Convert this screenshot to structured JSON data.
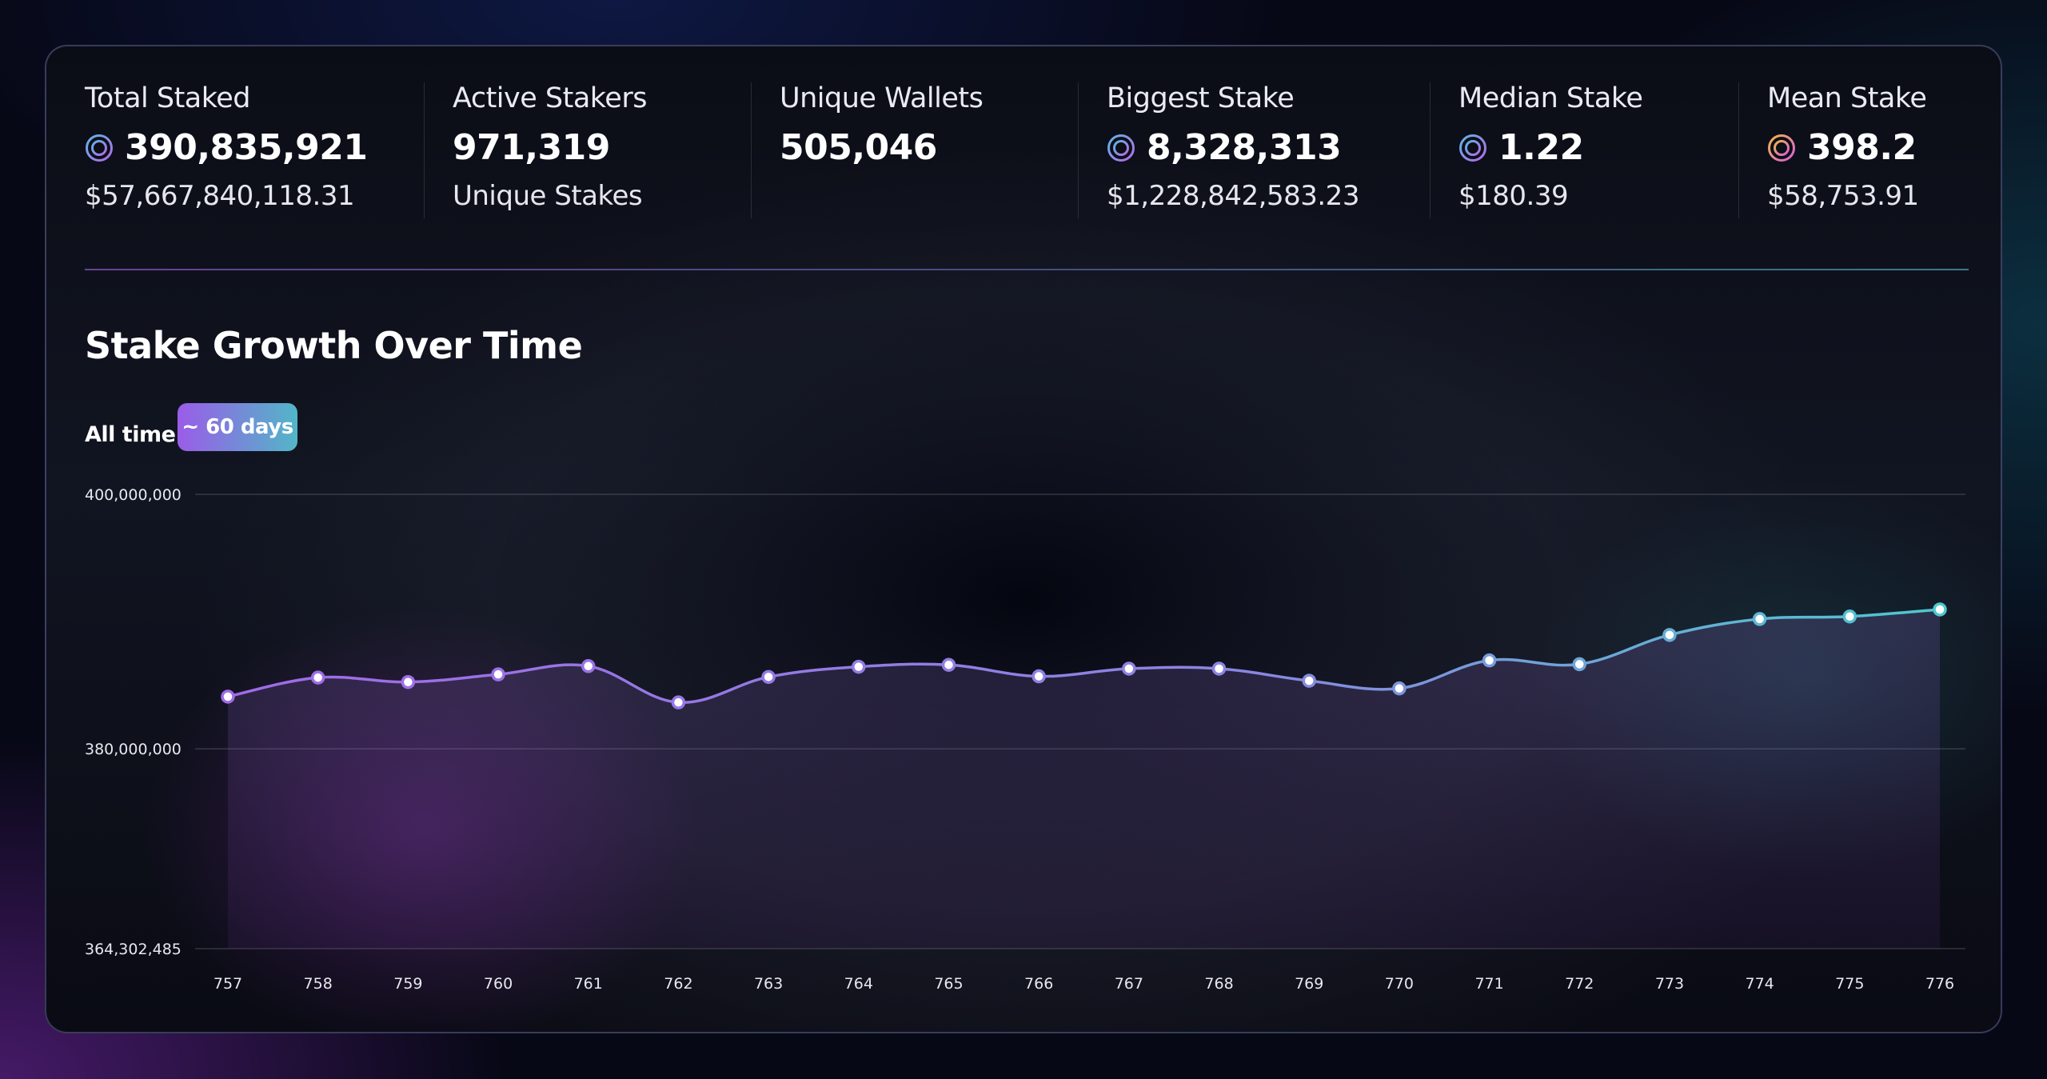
{
  "stats": [
    {
      "label": "Total Staked",
      "value": "390,835,921",
      "sub": "$57,667,840,118.31",
      "icon": "token-coin-icon"
    },
    {
      "label": "Active Stakers",
      "value": "971,319",
      "sub": "Unique Stakes",
      "icon": ""
    },
    {
      "label": "Unique Wallets",
      "value": "505,046",
      "sub": "",
      "icon": ""
    },
    {
      "label": "Biggest Stake",
      "value": "8,328,313",
      "sub": "$1,228,842,583.23",
      "icon": "token-coin-icon"
    },
    {
      "label": "Median Stake",
      "value": "1.22",
      "sub": "$180.39",
      "icon": "token-coin-icon"
    },
    {
      "label": "Mean Stake",
      "value": "398.2",
      "sub": "$58,753.91",
      "icon": "token-coin-gold-icon"
    }
  ],
  "colors": {
    "accent_purple": "#9a6ae6",
    "accent_teal": "#4ec3cf",
    "gold": "#f3b649"
  },
  "range": {
    "all_label": "All time",
    "recent_label": "~ 60 days"
  },
  "chart_data": {
    "type": "line",
    "title": "Stake Growth Over Time",
    "xlabel": "",
    "ylabel": "",
    "categories": [
      "757",
      "758",
      "759",
      "760",
      "761",
      "762",
      "763",
      "764",
      "765",
      "766",
      "767",
      "768",
      "769",
      "770",
      "771",
      "772",
      "773",
      "774",
      "775",
      "776"
    ],
    "series": [
      {
        "name": "Total Staked",
        "values": [
          384100000,
          385600000,
          385250000,
          385850000,
          386500000,
          383650000,
          385650000,
          386450000,
          386600000,
          385700000,
          386300000,
          386300000,
          385350000,
          384750000,
          386950000,
          386650000,
          388950000,
          390200000,
          390400000,
          390950000
        ]
      }
    ],
    "y_ticks": [
      "400,000,000",
      "380,000,000",
      "364,302,485"
    ],
    "ylim": [
      364302485,
      400000000
    ],
    "grid": true
  }
}
